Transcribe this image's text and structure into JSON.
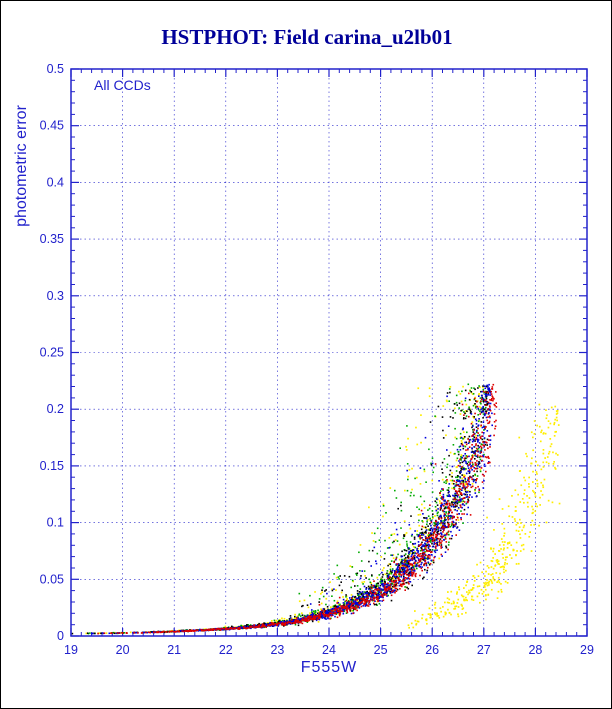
{
  "chart_data": {
    "type": "scatter",
    "title": "HSTPHOT: Field carina_u2lb01",
    "annotation": "All CCDs",
    "xlabel": "F555W",
    "ylabel": "photometric error",
    "xlim": [
      19,
      29
    ],
    "ylim": [
      0,
      0.5
    ],
    "xticks": [
      19,
      20,
      21,
      22,
      23,
      24,
      25,
      26,
      27,
      28,
      29
    ],
    "yticks": [
      0,
      0.05,
      0.1,
      0.15,
      0.2,
      0.25,
      0.3,
      0.35,
      0.4,
      0.45,
      0.5
    ],
    "ytick_labels": [
      "0",
      "0.05",
      "0.1",
      "0.15",
      "0.2",
      "0.25",
      "0.3",
      "0.35",
      "0.4",
      "0.45",
      "0.5"
    ],
    "ytick_step": 0.05,
    "x_minor_step": 0.2,
    "y_minor_step": 0.01,
    "grid": {
      "style": "dashed",
      "color": "#2222cc"
    },
    "axis_color": "#2222cc",
    "title_color": "#000099",
    "ridge_curve": [
      [
        19,
        0.002
      ],
      [
        20,
        0.0026
      ],
      [
        20.5,
        0.0032
      ],
      [
        21,
        0.004
      ],
      [
        21.5,
        0.005
      ],
      [
        22,
        0.0063
      ],
      [
        22.5,
        0.008
      ],
      [
        23,
        0.0105
      ],
      [
        23.5,
        0.0145
      ],
      [
        24,
        0.02
      ],
      [
        24.5,
        0.028
      ],
      [
        25,
        0.04
      ],
      [
        25.5,
        0.058
      ],
      [
        26,
        0.085
      ],
      [
        26.3,
        0.105
      ],
      [
        26.6,
        0.135
      ],
      [
        26.85,
        0.165
      ],
      [
        27.0,
        0.19
      ],
      [
        27.1,
        0.21
      ],
      [
        27.2,
        0.218
      ]
    ],
    "branch_curve": [
      [
        25.4,
        0.01
      ],
      [
        26,
        0.017
      ],
      [
        26.5,
        0.027
      ],
      [
        27,
        0.045
      ],
      [
        27.3,
        0.06
      ],
      [
        27.6,
        0.085
      ],
      [
        27.9,
        0.12
      ],
      [
        28.1,
        0.145
      ],
      [
        28.4,
        0.185
      ]
    ],
    "series": [
      {
        "name": "ccd-yellow",
        "color": "#ffee00",
        "curve": "ridge_curve",
        "n": 520,
        "seed": 11,
        "size": 1.7,
        "x_offset": -0.12,
        "m_min": 19,
        "m_max": 27.1,
        "m_pow": 0.45,
        "jitter": [
          0.06,
          0.12
        ],
        "halo_prob": 0.22,
        "halo_max": 2.6,
        "halo_min": 23.5,
        "err_cap": 0.222,
        "pile": [
          0.193,
          0.028
        ]
      },
      {
        "name": "ccd-green",
        "color": "#00aa00",
        "curve": "ridge_curve",
        "n": 760,
        "seed": 22,
        "size": 1.6,
        "x_offset": -0.07,
        "m_min": 19,
        "m_max": 27.12,
        "m_pow": 0.45,
        "jitter": [
          0.06,
          0.12
        ],
        "halo_prob": 0.18,
        "halo_max": 2.4,
        "halo_min": 23.5,
        "err_cap": 0.222,
        "pile": [
          0.193,
          0.028
        ]
      },
      {
        "name": "ccd-black",
        "color": "#000000",
        "curve": "ridge_curve",
        "n": 760,
        "seed": 33,
        "size": 1.6,
        "x_offset": -0.04,
        "m_min": 19,
        "m_max": 27.15,
        "m_pow": 0.45,
        "jitter": [
          0.055,
          0.11
        ],
        "halo_prob": 0.12,
        "halo_max": 2.2,
        "halo_min": 23.5,
        "err_cap": 0.222,
        "pile": [
          0.193,
          0.028
        ]
      },
      {
        "name": "ccd-blue",
        "color": "#0000dd",
        "curve": "ridge_curve",
        "n": 1150,
        "seed": 44,
        "size": 1.6,
        "x_offset": 0,
        "m_min": 19,
        "m_max": 27.15,
        "m_pow": 0.45,
        "jitter": [
          0.05,
          0.1
        ],
        "halo_prob": 0.05,
        "halo_max": 1.9,
        "halo_min": 23.5,
        "err_cap": 0.222,
        "pile": [
          0.195,
          0.026
        ]
      },
      {
        "name": "ccd-red",
        "color": "#dd0000",
        "curve": "ridge_curve",
        "n": 950,
        "seed": 55,
        "size": 1.6,
        "x_offset": 0.05,
        "m_min": 19,
        "m_max": 27.2,
        "m_pow": 0.45,
        "jitter": [
          0.05,
          0.09
        ],
        "halo_prob": 0.025,
        "halo_max": 1.6,
        "halo_min": 23.5,
        "err_cap": 0.222,
        "pile": [
          0.196,
          0.025
        ]
      },
      {
        "name": "ccd-yellow-branch",
        "color": "#ffee00",
        "curve": "branch_curve",
        "n": 380,
        "seed": 66,
        "size": 1.7,
        "x_offset": 0,
        "m_min": 25.4,
        "m_max": 28.45,
        "m_pow": 0.55,
        "jitter": [
          0.22,
          0
        ],
        "halo_prob": 0.1,
        "halo_max": 1.8,
        "halo_min": 25.4,
        "err_cap": 0.21,
        "pile": [
          0.15,
          0.05
        ]
      }
    ]
  }
}
